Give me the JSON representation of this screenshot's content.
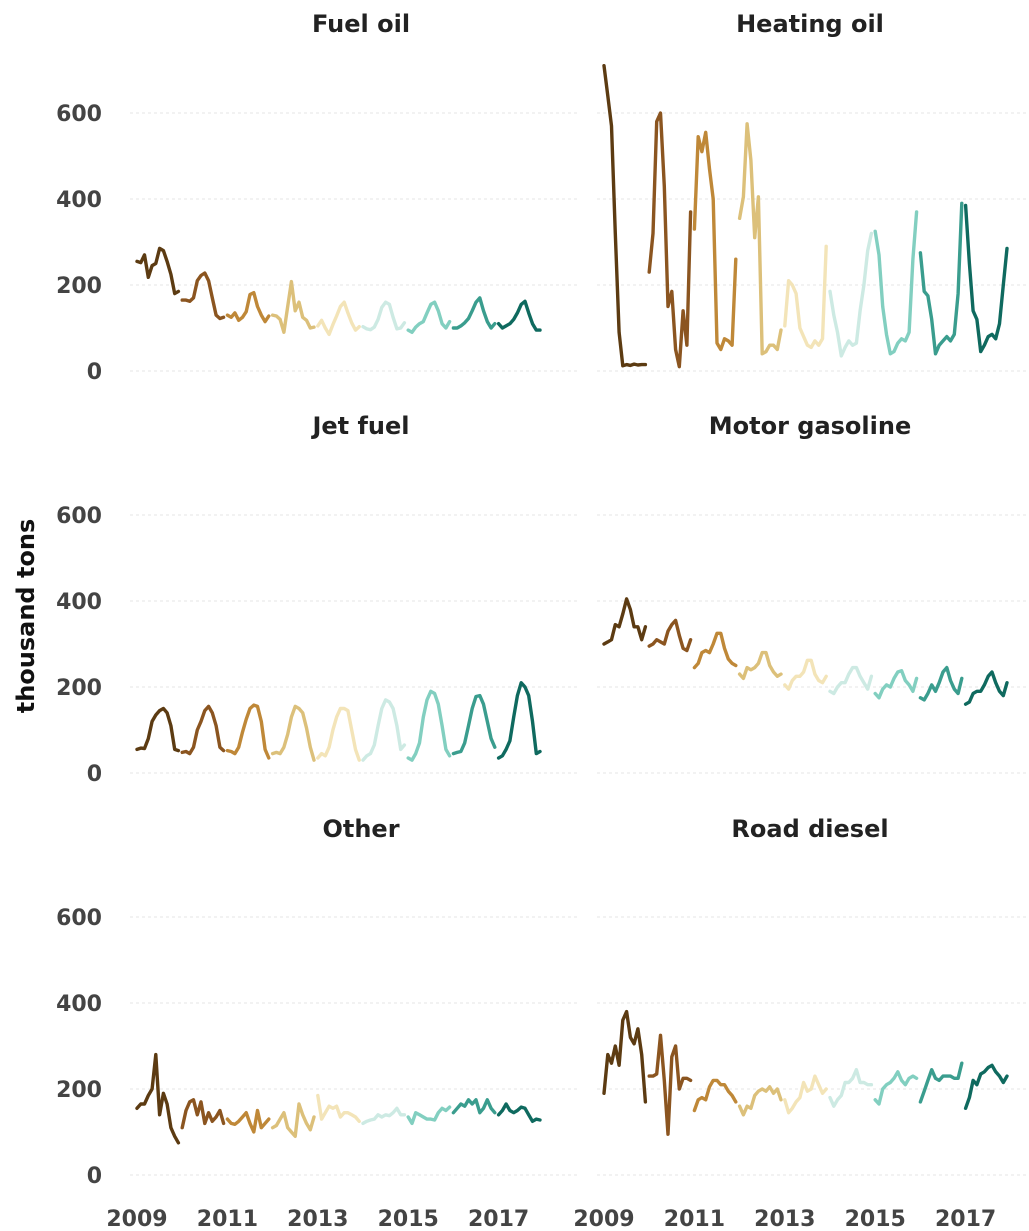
{
  "chart_data": {
    "type": "line",
    "ylabel": "thousand tons",
    "ylim": [
      0,
      720
    ],
    "y_ticks": [
      0,
      200,
      400,
      600
    ],
    "x_ticks": [
      2009,
      2011,
      2013,
      2015,
      2017
    ],
    "xlim": [
      2009,
      2018
    ],
    "grid": "horizontal dashed",
    "year_colors": {
      "2009": "#5c3b12",
      "2010": "#8b5520",
      "2011": "#bf8838",
      "2012": "#dcc07a",
      "2013": "#f3e4b8",
      "2014": "#cdeae3",
      "2015": "#82cfc0",
      "2016": "#3a9d8e",
      "2017": "#0f6a5f"
    },
    "panels": [
      {
        "title": "Fuel oil",
        "series": [
          {
            "year": 2009,
            "values": [
              255,
              252,
              270,
              218,
              245,
              250,
              285,
              280,
              255,
              225,
              180,
              185
            ]
          },
          {
            "year": 2010,
            "values": [
              165,
              165,
              162,
              170,
              210,
              222,
              228,
              210,
              170,
              130,
              122,
              125
            ]
          },
          {
            "year": 2011,
            "values": [
              130,
              125,
              135,
              118,
              125,
              138,
              178,
              182,
              150,
              130,
              115,
              128
            ]
          },
          {
            "year": 2012,
            "values": [
              130,
              128,
              120,
              90,
              150,
              208,
              140,
              160,
              125,
              118,
              100,
              102
            ]
          },
          {
            "year": 2013,
            "values": [
              105,
              118,
              100,
              85,
              108,
              128,
              150,
              160,
              135,
              112,
              95,
              103
            ]
          },
          {
            "year": 2014,
            "values": [
              103,
              98,
              96,
              102,
              120,
              148,
              160,
              155,
              125,
              98,
              100,
              112
            ]
          },
          {
            "year": 2015,
            "values": [
              95,
              90,
              102,
              110,
              115,
              135,
              155,
              160,
              140,
              110,
              100,
              115
            ]
          },
          {
            "year": 2016,
            "values": [
              100,
              100,
              105,
              112,
              122,
              140,
              160,
              170,
              140,
              115,
              100,
              110
            ]
          },
          {
            "year": 2017,
            "values": [
              110,
              100,
              105,
              110,
              120,
              135,
              155,
              162,
              135,
              110,
              95,
              95
            ]
          }
        ]
      },
      {
        "title": "Heating oil",
        "series": [
          {
            "year": 2009,
            "values": [
              710,
              640,
              570,
              320,
              90,
              12,
              15,
              13,
              16,
              14,
              15,
              15
            ]
          },
          {
            "year": 2010,
            "values": [
              230,
              320,
              580,
              600,
              430,
              150,
              185,
              50,
              10,
              140,
              60,
              370
            ]
          },
          {
            "year": 2011,
            "values": [
              330,
              545,
              510,
              555,
              470,
              400,
              65,
              50,
              75,
              70,
              60,
              260
            ]
          },
          {
            "year": 2012,
            "values": [
              355,
              405,
              575,
              490,
              310,
              405,
              40,
              45,
              60,
              60,
              50,
              95
            ]
          },
          {
            "year": 2013,
            "values": [
              105,
              210,
              200,
              180,
              100,
              80,
              60,
              55,
              70,
              60,
              75,
              290
            ]
          },
          {
            "year": 2014,
            "values": [
              185,
              130,
              90,
              35,
              55,
              70,
              60,
              65,
              140,
              200,
              280,
              320
            ]
          },
          {
            "year": 2015,
            "values": [
              325,
              270,
              150,
              85,
              40,
              45,
              65,
              75,
              70,
              90,
              260,
              370
            ]
          },
          {
            "year": 2016,
            "values": [
              275,
              185,
              175,
              120,
              40,
              60,
              70,
              80,
              70,
              85,
              180,
              390
            ]
          },
          {
            "year": 2017,
            "values": [
              385,
              250,
              140,
              120,
              45,
              60,
              80,
              85,
              75,
              110,
              200,
              285
            ]
          }
        ]
      },
      {
        "title": "Jet fuel",
        "series": [
          {
            "year": 2009,
            "values": [
              55,
              58,
              57,
              80,
              120,
              135,
              145,
              150,
              140,
              110,
              55,
              52
            ]
          },
          {
            "year": 2010,
            "values": [
              48,
              50,
              45,
              60,
              100,
              120,
              145,
              155,
              140,
              110,
              60,
              52
            ]
          },
          {
            "year": 2011,
            "values": [
              52,
              50,
              45,
              60,
              95,
              125,
              150,
              158,
              155,
              120,
              55,
              35
            ]
          },
          {
            "year": 2012,
            "values": [
              45,
              48,
              45,
              60,
              90,
              130,
              155,
              150,
              140,
              105,
              60,
              30
            ]
          },
          {
            "year": 2013,
            "values": [
              35,
              45,
              40,
              60,
              100,
              130,
              150,
              150,
              145,
              100,
              55,
              30
            ]
          },
          {
            "year": 2014,
            "values": [
              30,
              40,
              45,
              65,
              110,
              150,
              170,
              165,
              150,
              110,
              55,
              65
            ]
          },
          {
            "year": 2015,
            "values": [
              35,
              30,
              45,
              70,
              130,
              170,
              190,
              185,
              160,
              110,
              55,
              40
            ]
          },
          {
            "year": 2016,
            "values": [
              45,
              48,
              50,
              70,
              110,
              150,
              178,
              180,
              160,
              120,
              80,
              60
            ]
          },
          {
            "year": 2017,
            "values": [
              35,
              40,
              55,
              75,
              130,
              180,
              210,
              200,
              180,
              120,
              45,
              50
            ]
          }
        ]
      },
      {
        "title": "Motor gasoline",
        "series": [
          {
            "year": 2009,
            "values": [
              300,
              305,
              310,
              345,
              340,
              370,
              405,
              380,
              340,
              340,
              310,
              340
            ]
          },
          {
            "year": 2010,
            "values": [
              295,
              300,
              310,
              305,
              300,
              330,
              345,
              355,
              320,
              290,
              285,
              310
            ]
          },
          {
            "year": 2011,
            "values": [
              245,
              255,
              280,
              285,
              280,
              300,
              325,
              325,
              290,
              265,
              255,
              250
            ]
          },
          {
            "year": 2012,
            "values": [
              230,
              220,
              245,
              240,
              245,
              255,
              280,
              280,
              250,
              235,
              225,
              230
            ]
          },
          {
            "year": 2013,
            "values": [
              205,
              195,
              215,
              225,
              225,
              235,
              262,
              262,
              230,
              215,
              210,
              225
            ]
          },
          {
            "year": 2014,
            "values": [
              190,
              185,
              200,
              210,
              210,
              230,
              245,
              245,
              225,
              210,
              195,
              225
            ]
          },
          {
            "year": 2015,
            "values": [
              185,
              175,
              195,
              205,
              200,
              220,
              235,
              238,
              215,
              205,
              190,
              220
            ]
          },
          {
            "year": 2016,
            "values": [
              175,
              170,
              185,
              205,
              190,
              210,
              235,
              245,
              215,
              195,
              185,
              220
            ]
          },
          {
            "year": 2017,
            "values": [
              160,
              165,
              185,
              190,
              190,
              205,
              225,
              235,
              210,
              190,
              180,
              210
            ]
          }
        ]
      },
      {
        "title": "Other",
        "series": [
          {
            "year": 2009,
            "values": [
              155,
              165,
              165,
              185,
              200,
              280,
              140,
              190,
              165,
              110,
              90,
              75
            ]
          },
          {
            "year": 2010,
            "values": [
              110,
              150,
              170,
              175,
              140,
              170,
              120,
              145,
              125,
              135,
              150,
              120
            ]
          },
          {
            "year": 2011,
            "values": [
              130,
              120,
              118,
              125,
              135,
              145,
              120,
              100,
              150,
              110,
              120,
              130
            ]
          },
          {
            "year": 2012,
            "values": [
              110,
              115,
              130,
              145,
              110,
              100,
              90,
              165,
              140,
              120,
              105,
              135
            ]
          },
          {
            "year": 2013,
            "values": [
              185,
              130,
              145,
              160,
              155,
              160,
              135,
              145,
              145,
              140,
              135,
              125
            ]
          },
          {
            "year": 2014,
            "values": [
              120,
              125,
              128,
              130,
              140,
              135,
              140,
              138,
              145,
              155,
              140,
              140
            ]
          },
          {
            "year": 2015,
            "values": [
              135,
              120,
              145,
              140,
              135,
              130,
              130,
              128,
              145,
              155,
              150,
              158
            ]
          },
          {
            "year": 2016,
            "values": [
              145,
              155,
              165,
              160,
              175,
              165,
              175,
              145,
              155,
              175,
              155,
              145
            ]
          },
          {
            "year": 2017,
            "values": [
              140,
              150,
              165,
              150,
              145,
              150,
              158,
              155,
              140,
              125,
              130,
              128
            ]
          }
        ]
      },
      {
        "title": "Road diesel",
        "series": [
          {
            "year": 2009,
            "values": [
              190,
              280,
              260,
              300,
              255,
              360,
              380,
              320,
              305,
              340,
              280,
              170
            ]
          },
          {
            "year": 2010,
            "values": [
              230,
              230,
              235,
              325,
              220,
              95,
              275,
              300,
              200,
              225,
              225,
              220
            ]
          },
          {
            "year": 2011,
            "values": [
              150,
              175,
              180,
              175,
              205,
              220,
              220,
              210,
              210,
              195,
              185,
              170
            ]
          },
          {
            "year": 2012,
            "values": [
              160,
              140,
              160,
              155,
              185,
              195,
              200,
              195,
              205,
              190,
              200,
              175
            ]
          },
          {
            "year": 2013,
            "values": [
              175,
              145,
              155,
              170,
              180,
              215,
              195,
              200,
              230,
              210,
              190,
              200
            ]
          },
          {
            "year": 2014,
            "values": [
              180,
              160,
              175,
              185,
              215,
              215,
              225,
              245,
              215,
              215,
              210,
              210
            ]
          },
          {
            "year": 2015,
            "values": [
              175,
              165,
              200,
              210,
              215,
              225,
              240,
              220,
              210,
              225,
              230,
              225
            ]
          },
          {
            "year": 2016,
            "values": [
              170,
              195,
              220,
              245,
              225,
              220,
              230,
              230,
              230,
              225,
              225,
              260
            ]
          },
          {
            "year": 2017,
            "values": [
              155,
              180,
              220,
              210,
              235,
              240,
              250,
              255,
              240,
              230,
              215,
              230
            ]
          }
        ]
      }
    ]
  }
}
